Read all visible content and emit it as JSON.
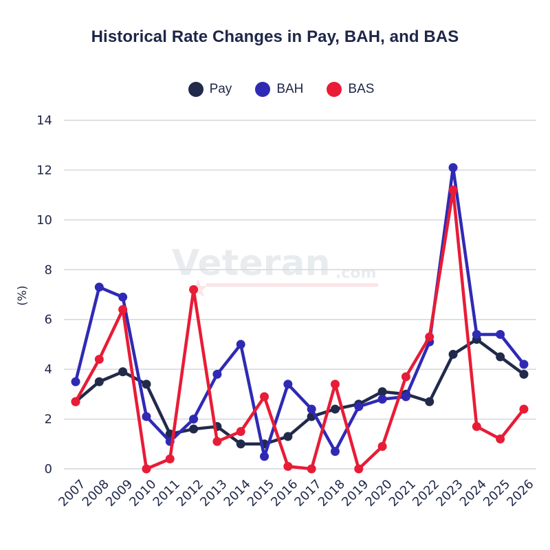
{
  "chart_data": {
    "type": "line",
    "title": "Historical Rate Changes in Pay, BAH, and BAS",
    "xlabel": "",
    "ylabel": "(%)",
    "ylim": [
      0,
      14
    ],
    "yticks": [
      "0",
      "2",
      "4",
      "6",
      "8",
      "10",
      "12",
      "14"
    ],
    "ytick_values": [
      0,
      2,
      4,
      6,
      8,
      10,
      12,
      14
    ],
    "grid": true,
    "legend_position": "top-center",
    "categories": [
      "2007",
      "2008",
      "2009",
      "2010",
      "2011",
      "2012",
      "2013",
      "2014",
      "2015",
      "2016",
      "2017",
      "2018",
      "2019",
      "2020",
      "2021",
      "2022",
      "2023",
      "2024",
      "2025",
      "2026"
    ],
    "series": [
      {
        "name": "Pay",
        "color": "#222a4b",
        "values": [
          2.7,
          3.5,
          3.9,
          3.4,
          1.4,
          1.6,
          1.7,
          1.0,
          1.0,
          1.3,
          2.1,
          2.4,
          2.6,
          3.1,
          3.0,
          2.7,
          4.6,
          5.2,
          4.5,
          3.8
        ]
      },
      {
        "name": "BAH",
        "color": "#2f2ab4",
        "values": [
          3.5,
          7.3,
          6.9,
          2.1,
          1.1,
          2.0,
          3.8,
          5.0,
          0.5,
          3.4,
          2.4,
          0.7,
          2.5,
          2.8,
          2.9,
          5.1,
          12.1,
          5.4,
          5.4,
          4.2
        ]
      },
      {
        "name": "BAS",
        "color": "#e81c36",
        "values": [
          2.7,
          4.4,
          6.4,
          0.0,
          0.4,
          7.2,
          1.1,
          1.5,
          2.9,
          0.1,
          0.0,
          3.4,
          0.0,
          0.9,
          3.7,
          5.3,
          11.2,
          1.7,
          1.2,
          2.4
        ]
      }
    ],
    "watermark": {
      "main": "Veteran",
      "suffix": ".com"
    }
  }
}
